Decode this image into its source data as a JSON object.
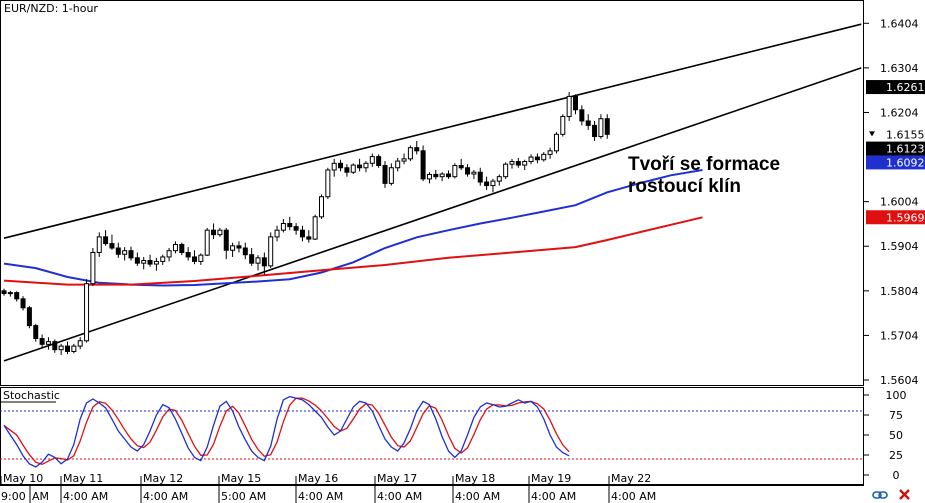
{
  "chart_data": {
    "type": "candlestick",
    "title": "EUR/NZD: 1-hour",
    "annotation_lines": [
      "Tvoří se formace",
      "rostoucí klín"
    ],
    "price_axis": {
      "ticks": [
        "1.6404",
        "1.6304",
        "1.6204",
        "1.6004",
        "1.5904",
        "1.5804",
        "1.5704",
        "1.5604"
      ],
      "ylim": [
        1.5604,
        1.6454
      ],
      "markers": [
        {
          "label": "1.6261",
          "value": 1.6261,
          "bg": "#000000",
          "fg": "#ffffff"
        },
        {
          "label": "1.6155",
          "value": 1.6155,
          "bg": "#ffffff",
          "fg": "#000000",
          "arrow": true
        },
        {
          "label": "1.6123",
          "value": 1.6123,
          "bg": "#000000",
          "fg": "#ffffff"
        },
        {
          "label": "1.6092",
          "value": 1.6092,
          "bg": "#1f2fd0",
          "fg": "#ffffff"
        },
        {
          "label": "1.5969",
          "value": 1.5969,
          "bg": "#e01010",
          "fg": "#ffffff"
        }
      ]
    },
    "time_axis": {
      "date_labels": [
        "May 10",
        "May 11",
        "May 12",
        "May 15",
        "May 16",
        "May 17",
        "May 18",
        "May 19",
        "May 22"
      ],
      "time_labels": [
        "9:00",
        "AM",
        "4:00 AM",
        "4:00 AM",
        "5:00 AM",
        "4:00 AM",
        "4:00 AM",
        "4:00 AM",
        "4:00 AM",
        "4:00 AM"
      ]
    },
    "wedge": {
      "upper": [
        [
          0,
          1.5922
        ],
        [
          135,
          1.6402
        ]
      ],
      "lower": [
        [
          0,
          1.5647
        ],
        [
          135,
          1.6304
        ]
      ]
    },
    "series": [
      {
        "name": "",
        "color": "#1f2fd0",
        "points": [
          [
            0,
            1.5865
          ],
          [
            5,
            1.5855
          ],
          [
            10,
            1.5835
          ],
          [
            15,
            1.5822
          ],
          [
            20,
            1.5818
          ],
          [
            25,
            1.5816
          ],
          [
            30,
            1.5817
          ],
          [
            35,
            1.5821
          ],
          [
            40,
            1.5825
          ],
          [
            45,
            1.583
          ],
          [
            50,
            1.5845
          ],
          [
            55,
            1.5868
          ],
          [
            60,
            1.59
          ],
          [
            65,
            1.5924
          ],
          [
            70,
            1.594
          ],
          [
            75,
            1.5955
          ],
          [
            80,
            1.5968
          ],
          [
            85,
            1.5982
          ],
          [
            90,
            1.5996
          ],
          [
            95,
            1.6025
          ],
          [
            100,
            1.6045
          ],
          [
            105,
            1.6063
          ],
          [
            110,
            1.6075
          ]
        ]
      },
      {
        "name": "",
        "color": "#e01010",
        "points": [
          [
            0,
            1.5827
          ],
          [
            10,
            1.5818
          ],
          [
            20,
            1.5818
          ],
          [
            30,
            1.5826
          ],
          [
            40,
            1.5838
          ],
          [
            50,
            1.585
          ],
          [
            60,
            1.5862
          ],
          [
            70,
            1.5878
          ],
          [
            80,
            1.589
          ],
          [
            90,
            1.5902
          ],
          [
            95,
            1.5918
          ],
          [
            100,
            1.5935
          ],
          [
            105,
            1.5952
          ],
          [
            110,
            1.5969
          ]
        ]
      }
    ],
    "candles": [
      [
        1.5804,
        1.5809,
        1.5793,
        1.5798
      ],
      [
        1.5798,
        1.5804,
        1.5791,
        1.58
      ],
      [
        1.58,
        1.5803,
        1.578,
        1.5786
      ],
      [
        1.5786,
        1.5792,
        1.576,
        1.5766
      ],
      [
        1.5766,
        1.577,
        1.572,
        1.5726
      ],
      [
        1.5726,
        1.573,
        1.569,
        1.5697
      ],
      [
        1.5697,
        1.5706,
        1.5676,
        1.5684
      ],
      [
        1.5684,
        1.57,
        1.5672,
        1.569
      ],
      [
        1.569,
        1.5695,
        1.5665,
        1.5672
      ],
      [
        1.5672,
        1.5685,
        1.566,
        1.568
      ],
      [
        1.568,
        1.569,
        1.5662,
        1.5668
      ],
      [
        1.5668,
        1.5685,
        1.5664,
        1.568
      ],
      [
        1.568,
        1.57,
        1.5673,
        1.5692
      ],
      [
        1.5692,
        1.583,
        1.5688,
        1.582
      ],
      [
        1.582,
        1.59,
        1.5815,
        1.589
      ],
      [
        1.589,
        1.5935,
        1.588,
        1.5925
      ],
      [
        1.5925,
        1.594,
        1.5905,
        1.591
      ],
      [
        1.591,
        1.593,
        1.5896,
        1.59
      ],
      [
        1.59,
        1.5912,
        1.5878,
        1.5886
      ],
      [
        1.5886,
        1.5902,
        1.5872,
        1.5894
      ],
      [
        1.5894,
        1.5903,
        1.5872,
        1.5878
      ],
      [
        1.5878,
        1.589,
        1.586,
        1.5866
      ],
      [
        1.5866,
        1.588,
        1.5852,
        1.5872
      ],
      [
        1.5872,
        1.5885,
        1.5858,
        1.5864
      ],
      [
        1.5864,
        1.5878,
        1.5849,
        1.587
      ],
      [
        1.587,
        1.5885,
        1.5862,
        1.588
      ],
      [
        1.588,
        1.59,
        1.587,
        1.5894
      ],
      [
        1.5894,
        1.5915,
        1.5888,
        1.5908
      ],
      [
        1.5908,
        1.5912,
        1.5884,
        1.589
      ],
      [
        1.589,
        1.5902,
        1.5872,
        1.588
      ],
      [
        1.588,
        1.5895,
        1.5864,
        1.587
      ],
      [
        1.587,
        1.5888,
        1.5862,
        1.5884
      ],
      [
        1.5884,
        1.5945,
        1.5882,
        1.594
      ],
      [
        1.594,
        1.5955,
        1.592,
        1.593
      ],
      [
        1.593,
        1.5945,
        1.5925,
        1.594
      ],
      [
        1.594,
        1.5945,
        1.5875,
        1.5895
      ],
      [
        1.5895,
        1.5912,
        1.588,
        1.5905
      ],
      [
        1.5905,
        1.5915,
        1.589,
        1.59
      ],
      [
        1.59,
        1.5912,
        1.5875,
        1.5885
      ],
      [
        1.5885,
        1.59,
        1.586,
        1.5866
      ],
      [
        1.5866,
        1.5884,
        1.585,
        1.5878
      ],
      [
        1.5878,
        1.589,
        1.584,
        1.586
      ],
      [
        1.586,
        1.5935,
        1.5855,
        1.5925
      ],
      [
        1.5925,
        1.595,
        1.5915,
        1.594
      ],
      [
        1.594,
        1.5965,
        1.5935,
        1.5955
      ],
      [
        1.5955,
        1.597,
        1.594,
        1.5948
      ],
      [
        1.5948,
        1.5956,
        1.593,
        1.594
      ],
      [
        1.594,
        1.595,
        1.5915,
        1.5925
      ],
      [
        1.5925,
        1.594,
        1.5912,
        1.592
      ],
      [
        1.592,
        1.5975,
        1.5918,
        1.597
      ],
      [
        1.597,
        1.602,
        1.5965,
        1.6015
      ],
      [
        1.6015,
        1.608,
        1.601,
        1.6075
      ],
      [
        1.6075,
        1.61,
        1.606,
        1.609
      ],
      [
        1.609,
        1.6098,
        1.6072,
        1.608
      ],
      [
        1.608,
        1.6088,
        1.606,
        1.607
      ],
      [
        1.607,
        1.609,
        1.6066,
        1.6086
      ],
      [
        1.6086,
        1.61,
        1.6072,
        1.608
      ],
      [
        1.608,
        1.6095,
        1.607,
        1.609
      ],
      [
        1.609,
        1.6112,
        1.6082,
        1.6105
      ],
      [
        1.6105,
        1.611,
        1.608,
        1.6085
      ],
      [
        1.6085,
        1.6095,
        1.6035,
        1.6045
      ],
      [
        1.6045,
        1.609,
        1.604,
        1.608
      ],
      [
        1.608,
        1.6102,
        1.6072,
        1.6095
      ],
      [
        1.6095,
        1.6112,
        1.6088,
        1.61
      ],
      [
        1.61,
        1.613,
        1.6095,
        1.6125
      ],
      [
        1.6125,
        1.614,
        1.611,
        1.6118
      ],
      [
        1.6118,
        1.613,
        1.605,
        1.6055
      ],
      [
        1.6055,
        1.607,
        1.6045,
        1.6065
      ],
      [
        1.6065,
        1.6075,
        1.6054,
        1.606
      ],
      [
        1.606,
        1.607,
        1.605,
        1.6066
      ],
      [
        1.6066,
        1.6074,
        1.6055,
        1.606
      ],
      [
        1.606,
        1.609,
        1.6056,
        1.6085
      ],
      [
        1.6085,
        1.61,
        1.6075,
        1.608
      ],
      [
        1.608,
        1.6088,
        1.606,
        1.6066
      ],
      [
        1.6066,
        1.6075,
        1.6055,
        1.607
      ],
      [
        1.607,
        1.608,
        1.604,
        1.6048
      ],
      [
        1.6048,
        1.606,
        1.603,
        1.604
      ],
      [
        1.604,
        1.6055,
        1.6025,
        1.605
      ],
      [
        1.605,
        1.6065,
        1.604,
        1.606
      ],
      [
        1.606,
        1.6092,
        1.6055,
        1.6088
      ],
      [
        1.6088,
        1.61,
        1.6078,
        1.6094
      ],
      [
        1.6094,
        1.6102,
        1.608,
        1.6086
      ],
      [
        1.6086,
        1.6098,
        1.6075,
        1.6094
      ],
      [
        1.6094,
        1.611,
        1.6088,
        1.6104
      ],
      [
        1.6104,
        1.6112,
        1.609,
        1.6098
      ],
      [
        1.6098,
        1.6115,
        1.6094,
        1.611
      ],
      [
        1.611,
        1.6125,
        1.61,
        1.6118
      ],
      [
        1.6118,
        1.616,
        1.6112,
        1.6155
      ],
      [
        1.6155,
        1.62,
        1.615,
        1.6195
      ],
      [
        1.6195,
        1.625,
        1.6185,
        1.624
      ],
      [
        1.624,
        1.6245,
        1.62,
        1.621
      ],
      [
        1.621,
        1.622,
        1.6175,
        1.6185
      ],
      [
        1.6185,
        1.62,
        1.6165,
        1.6175
      ],
      [
        1.6175,
        1.6185,
        1.614,
        1.615
      ],
      [
        1.615,
        1.62,
        1.6145,
        1.619
      ],
      [
        1.619,
        1.62,
        1.6145,
        1.6155
      ]
    ],
    "stochastic": {
      "title": "Stochastic",
      "ticks": [
        "100",
        "75",
        "50",
        "25",
        "0"
      ],
      "ylim": [
        0,
        100
      ],
      "levels": [
        80,
        20
      ],
      "k_color": "#1f2fd0",
      "d_color": "#e01010",
      "k": [
        62,
        50,
        38,
        24,
        14,
        10,
        16,
        26,
        22,
        14,
        20,
        38,
        70,
        90,
        95,
        90,
        84,
        70,
        55,
        45,
        35,
        30,
        38,
        55,
        75,
        88,
        84,
        70,
        52,
        34,
        22,
        18,
        35,
        62,
        86,
        92,
        80,
        60,
        44,
        30,
        22,
        18,
        36,
        70,
        94,
        98,
        96,
        94,
        88,
        80,
        72,
        60,
        50,
        55,
        70,
        85,
        92,
        90,
        80,
        62,
        45,
        35,
        30,
        40,
        58,
        80,
        92,
        88,
        70,
        48,
        30,
        22,
        30,
        50,
        72,
        85,
        90,
        88,
        85,
        86,
        90,
        94,
        90,
        92,
        85,
        70,
        50,
        35,
        28,
        24
      ]
    }
  },
  "ui": {
    "icon_link": "link-icon",
    "icon_close": "close-x-icon"
  }
}
